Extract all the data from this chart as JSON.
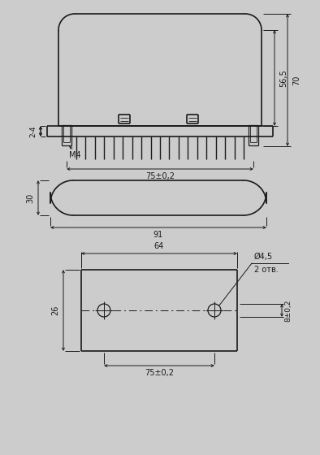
{
  "bg_color": "#cccccc",
  "line_color": "#1a1a1a",
  "fig_width": 3.94,
  "fig_height": 5.6,
  "dpi": 100,
  "labels": {
    "dim_565": "56,5",
    "dim_70": "70",
    "dim_24": "2-4",
    "dim_75": "75±0,2",
    "M4": "M4",
    "dim_30": "30",
    "dim_91": "91",
    "dim_64": "64",
    "dim_26": "26",
    "dim_75b": "75±0,2",
    "dim_d45": "Ø4,5",
    "dim_2otv": "2 отв.",
    "dim_8": "8±0,2"
  }
}
